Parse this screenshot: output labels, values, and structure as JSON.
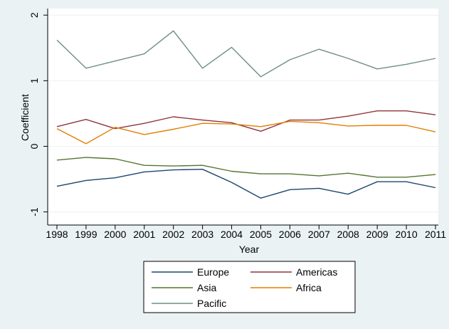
{
  "chart_data": {
    "type": "line",
    "title": "",
    "xlabel": "Year",
    "ylabel": "Coefficient",
    "x": [
      1998,
      1999,
      2000,
      2001,
      2002,
      2003,
      2004,
      2005,
      2006,
      2007,
      2008,
      2009,
      2010,
      2011
    ],
    "xlim": [
      1998,
      2011
    ],
    "ylim": [
      -1.2,
      2.1
    ],
    "yticks": [
      -1,
      0,
      1,
      2
    ],
    "ytick_labels": [
      "-1",
      "0",
      "1",
      "2"
    ],
    "grid": "horizontal",
    "legend_position": "bottom",
    "series": [
      {
        "name": "Europe",
        "color": "#1a476f",
        "values": [
          -0.61,
          -0.52,
          -0.48,
          -0.39,
          -0.36,
          -0.35,
          -0.55,
          -0.79,
          -0.66,
          -0.64,
          -0.73,
          -0.54,
          -0.54,
          -0.63
        ]
      },
      {
        "name": "Americas",
        "color": "#90353b",
        "values": [
          0.3,
          0.41,
          0.27,
          0.35,
          0.45,
          0.4,
          0.36,
          0.23,
          0.4,
          0.4,
          0.46,
          0.54,
          0.54,
          0.48
        ]
      },
      {
        "name": "Asia",
        "color": "#55752f",
        "values": [
          -0.21,
          -0.17,
          -0.19,
          -0.29,
          -0.3,
          -0.29,
          -0.38,
          -0.42,
          -0.42,
          -0.45,
          -0.41,
          -0.47,
          -0.47,
          -0.43
        ]
      },
      {
        "name": "Africa",
        "color": "#e37e00",
        "values": [
          0.27,
          0.04,
          0.29,
          0.18,
          0.26,
          0.35,
          0.34,
          0.3,
          0.38,
          0.36,
          0.31,
          0.32,
          0.32,
          0.22
        ]
      },
      {
        "name": "Pacific",
        "color": "#6e8e84",
        "values": [
          1.62,
          1.19,
          1.3,
          1.41,
          1.76,
          1.19,
          1.51,
          1.06,
          1.32,
          1.48,
          1.34,
          1.18,
          1.25,
          1.34
        ]
      }
    ]
  }
}
